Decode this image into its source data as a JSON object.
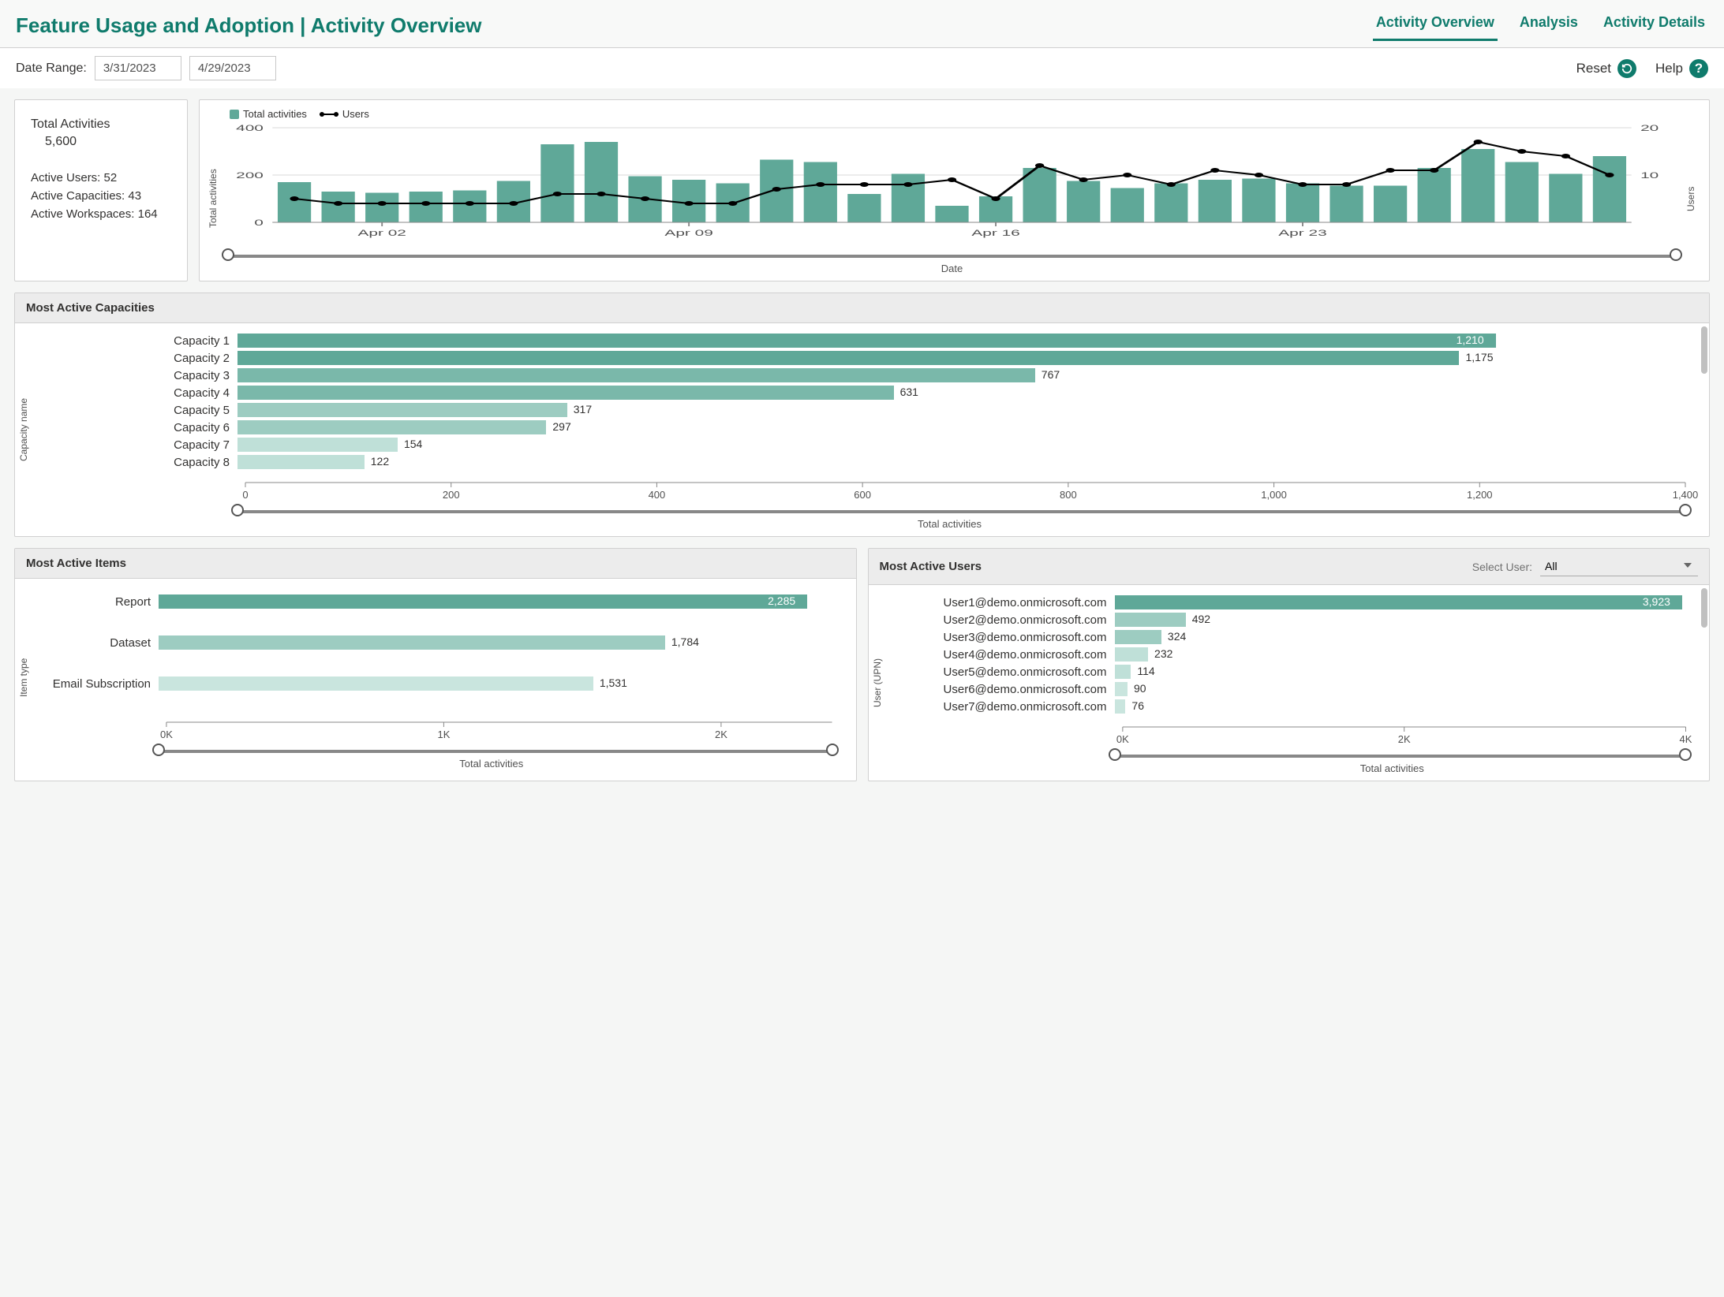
{
  "header": {
    "title": "Feature Usage and Adoption | Activity Overview",
    "tabs": [
      {
        "label": "Activity Overview",
        "active": true
      },
      {
        "label": "Analysis",
        "active": false
      },
      {
        "label": "Activity Details",
        "active": false
      }
    ]
  },
  "toolbar": {
    "date_range_label": "Date Range:",
    "date_start": "3/31/2023",
    "date_end": "4/29/2023",
    "reset_label": "Reset",
    "help_label": "Help"
  },
  "kpi": {
    "total_activities_label": "Total Activities",
    "total_activities_value": "5,600",
    "active_users": "Active Users: 52",
    "active_capacities": "Active Capacities: 43",
    "active_workspaces": "Active Workspaces: 164"
  },
  "main_chart": {
    "legend_activities": "Total activities",
    "legend_users": "Users",
    "y_left_label": "Total activities",
    "y_right_label": "Users",
    "x_label": "Date",
    "y_left_ticks": [
      0,
      200,
      400
    ],
    "y_left_max": 400,
    "y_right_ticks": [
      10,
      20
    ],
    "y_right_max": 20,
    "x_ticks": [
      "Apr 02",
      "Apr 09",
      "Apr 16",
      "Apr 23"
    ],
    "bar_color": "#5fa898",
    "line_color": "#000000",
    "grid_color": "#d9d9d9",
    "bars": [
      170,
      130,
      125,
      130,
      135,
      175,
      330,
      340,
      195,
      180,
      165,
      265,
      255,
      120,
      205,
      70,
      110,
      230,
      175,
      145,
      165,
      180,
      185,
      165,
      155,
      155,
      230,
      310,
      255,
      205,
      280
    ],
    "users": [
      5,
      4,
      4,
      4,
      4,
      4,
      6,
      6,
      5,
      4,
      4,
      7,
      8,
      8,
      8,
      9,
      5,
      12,
      9,
      10,
      8,
      11,
      10,
      8,
      8,
      11,
      11,
      17,
      15,
      14,
      10
    ]
  },
  "capacities": {
    "title": "Most Active Capacities",
    "y_label": "Capacity name",
    "x_label": "Total activities",
    "x_max": 1400,
    "x_ticks": [
      0,
      200,
      400,
      600,
      800,
      1000,
      1200,
      1400
    ],
    "colors": [
      "#5fa898",
      "#5fa898",
      "#7ab8aa",
      "#7ab8aa",
      "#9dccc1",
      "#9dccc1",
      "#bfe0d8",
      "#bfe0d8"
    ],
    "items": [
      {
        "label": "Capacity 1",
        "value": 1210,
        "display": "1,210"
      },
      {
        "label": "Capacity 2",
        "value": 1175,
        "display": "1,175"
      },
      {
        "label": "Capacity 3",
        "value": 767,
        "display": "767"
      },
      {
        "label": "Capacity 4",
        "value": 631,
        "display": "631"
      },
      {
        "label": "Capacity 5",
        "value": 317,
        "display": "317"
      },
      {
        "label": "Capacity 6",
        "value": 297,
        "display": "297"
      },
      {
        "label": "Capacity 7",
        "value": 154,
        "display": "154"
      },
      {
        "label": "Capacity 8",
        "value": 122,
        "display": "122"
      }
    ]
  },
  "items_chart": {
    "title": "Most Active Items",
    "y_label": "Item type",
    "x_label": "Total activities",
    "x_max": 2400,
    "x_ticks": [
      "0K",
      "1K",
      "2K"
    ],
    "x_tick_vals": [
      0,
      1000,
      2000
    ],
    "colors": [
      "#5fa898",
      "#9dccc1",
      "#c9e5de"
    ],
    "items": [
      {
        "label": "Report",
        "value": 2285,
        "display": "2,285"
      },
      {
        "label": "Dataset",
        "value": 1784,
        "display": "1,784"
      },
      {
        "label": "Email Subscription",
        "value": 1531,
        "display": "1,531"
      }
    ]
  },
  "users_chart": {
    "title": "Most Active Users",
    "select_label": "Select User:",
    "select_value": "All",
    "y_label": "User (UPN)",
    "x_label": "Total activities",
    "x_max": 4000,
    "x_ticks": [
      "0K",
      "2K",
      "4K"
    ],
    "x_tick_vals": [
      0,
      2000,
      4000
    ],
    "colors": [
      "#5fa898",
      "#9dccc1",
      "#9dccc1",
      "#bfe0d8",
      "#bfe0d8",
      "#c9e5de",
      "#c9e5de"
    ],
    "items": [
      {
        "label": "User1@demo.onmicrosoft.com",
        "value": 3923,
        "display": "3,923"
      },
      {
        "label": "User2@demo.onmicrosoft.com",
        "value": 492,
        "display": "492"
      },
      {
        "label": "User3@demo.onmicrosoft.com",
        "value": 324,
        "display": "324"
      },
      {
        "label": "User4@demo.onmicrosoft.com",
        "value": 232,
        "display": "232"
      },
      {
        "label": "User5@demo.onmicrosoft.com",
        "value": 114,
        "display": "114"
      },
      {
        "label": "User6@demo.onmicrosoft.com",
        "value": 90,
        "display": "90"
      },
      {
        "label": "User7@demo.onmicrosoft.com",
        "value": 76,
        "display": "76"
      }
    ]
  }
}
